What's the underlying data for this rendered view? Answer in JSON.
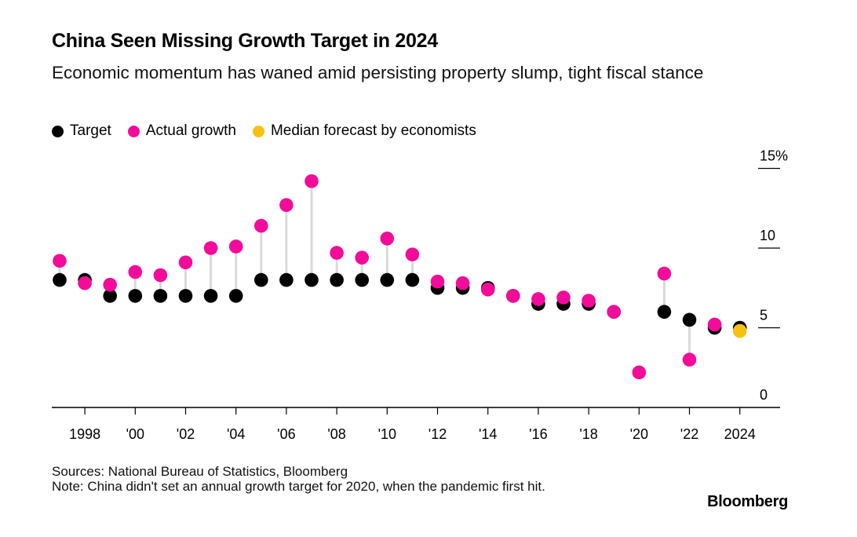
{
  "chart_data": {
    "type": "scatter",
    "title": "China Seen Missing Growth Target in 2024",
    "subtitle": "Economic momentum has waned amid persisting property slump, tight fiscal stance",
    "legend": [
      {
        "name": "Target",
        "color": "#000000"
      },
      {
        "name": "Actual growth",
        "color": "#F20C99"
      },
      {
        "name": "Median forecast by economists",
        "color": "#F5C211"
      }
    ],
    "legend_placement": "top-left",
    "x_tick_labels": [
      {
        "x": 1998,
        "label": "1998"
      },
      {
        "x": 2000,
        "label": "'00"
      },
      {
        "x": 2002,
        "label": "'02"
      },
      {
        "x": 2004,
        "label": "'04"
      },
      {
        "x": 2006,
        "label": "'06"
      },
      {
        "x": 2008,
        "label": "'08"
      },
      {
        "x": 2010,
        "label": "'10"
      },
      {
        "x": 2012,
        "label": "'12"
      },
      {
        "x": 2014,
        "label": "'14"
      },
      {
        "x": 2016,
        "label": "'16"
      },
      {
        "x": 2018,
        "label": "'18"
      },
      {
        "x": 2020,
        "label": "'20"
      },
      {
        "x": 2022,
        "label": "'22"
      },
      {
        "x": 2024,
        "label": "2024"
      }
    ],
    "y_ticks": [
      {
        "value": 0,
        "label": "0"
      },
      {
        "value": 5,
        "label": "5"
      },
      {
        "value": 10,
        "label": "10"
      },
      {
        "value": 15,
        "label": "15%"
      }
    ],
    "xlim": [
      1997,
      2025
    ],
    "ylim": [
      0,
      15
    ],
    "grid": false,
    "series": [
      {
        "name": "Target",
        "color": "#000000",
        "points": [
          [
            1997,
            8
          ],
          [
            1998,
            8
          ],
          [
            1999,
            7
          ],
          [
            2000,
            7
          ],
          [
            2001,
            7
          ],
          [
            2002,
            7
          ],
          [
            2003,
            7
          ],
          [
            2004,
            7
          ],
          [
            2005,
            8
          ],
          [
            2006,
            8
          ],
          [
            2007,
            8
          ],
          [
            2008,
            8
          ],
          [
            2009,
            8
          ],
          [
            2010,
            8
          ],
          [
            2011,
            8
          ],
          [
            2012,
            7.5
          ],
          [
            2013,
            7.5
          ],
          [
            2014,
            7.5
          ],
          [
            2015,
            7
          ],
          [
            2016,
            6.5
          ],
          [
            2017,
            6.5
          ],
          [
            2018,
            6.5
          ],
          [
            2019,
            6
          ],
          [
            2021,
            6
          ],
          [
            2022,
            5.5
          ],
          [
            2023,
            5
          ],
          [
            2024,
            5
          ]
        ]
      },
      {
        "name": "Actual growth",
        "color": "#F20C99",
        "points": [
          [
            1997,
            9.2
          ],
          [
            1998,
            7.8
          ],
          [
            1999,
            7.7
          ],
          [
            2000,
            8.5
          ],
          [
            2001,
            8.3
          ],
          [
            2002,
            9.1
          ],
          [
            2003,
            10.0
          ],
          [
            2004,
            10.1
          ],
          [
            2005,
            11.4
          ],
          [
            2006,
            12.7
          ],
          [
            2007,
            14.2
          ],
          [
            2008,
            9.7
          ],
          [
            2009,
            9.4
          ],
          [
            2010,
            10.6
          ],
          [
            2011,
            9.6
          ],
          [
            2012,
            7.9
          ],
          [
            2013,
            7.8
          ],
          [
            2014,
            7.4
          ],
          [
            2015,
            7.0
          ],
          [
            2016,
            6.8
          ],
          [
            2017,
            6.9
          ],
          [
            2018,
            6.7
          ],
          [
            2019,
            6.0
          ],
          [
            2020,
            2.2
          ],
          [
            2021,
            8.4
          ],
          [
            2022,
            3.0
          ],
          [
            2023,
            5.2
          ]
        ]
      },
      {
        "name": "Median forecast by economists",
        "color": "#F5C211",
        "points": [
          [
            2024,
            4.8
          ]
        ]
      }
    ]
  },
  "footer": {
    "sources": "Sources: National Bureau of Statistics, Bloomberg",
    "note": "Note: China didn't set an annual growth target for 2020, when the pandemic first hit."
  },
  "brand": "Bloomberg",
  "colors": {
    "connector": "#d9d9d9",
    "axis": "#000000"
  }
}
